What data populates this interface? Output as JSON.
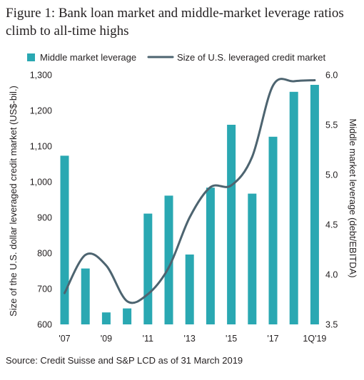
{
  "title": "Figure 1: Bank loan market and middle-market leverage ratios climb to all-time highs",
  "source": "Source: Credit Suisse and S&P LCD as of 31 March 2019",
  "colors": {
    "bar": "#2aa8b2",
    "line": "#4d6470",
    "text": "#231f20"
  },
  "chart_data": {
    "type": "bar",
    "categories": [
      "2007",
      "2008",
      "2009",
      "2010",
      "2011",
      "2012",
      "2013",
      "2014",
      "2015",
      "2016",
      "2017",
      "2018",
      "1Q19"
    ],
    "x_tick_labels": [
      "'07",
      "'09",
      "'11",
      "'13",
      "'15",
      "'17",
      "1Q'19"
    ],
    "series": [
      {
        "name": "Middle market leverage",
        "type": "bar",
        "axis": "right",
        "values": [
          5.19,
          4.06,
          3.62,
          3.66,
          4.61,
          4.79,
          4.2,
          4.87,
          5.5,
          4.81,
          5.38,
          5.83,
          5.9
        ]
      },
      {
        "name": "Size of U.S. leveraged credit market",
        "type": "line",
        "axis": "left",
        "values": [
          688,
          795,
          765,
          665,
          685,
          760,
          900,
          985,
          990,
          1070,
          1270,
          1282,
          1285
        ]
      }
    ],
    "y_left": {
      "label": "Size of the U.S. dollar leveraged credit market (US$-bil.)",
      "ylim": [
        600,
        1300
      ],
      "ticks": [
        "600",
        "700",
        "800",
        "900",
        "1,000",
        "1,100",
        "1,200",
        "1,300"
      ]
    },
    "y_right": {
      "label": "Middle market leverage (debt/EBITDA)",
      "ylim": [
        3.5,
        6.0
      ],
      "ticks": [
        "3.5",
        "4.0",
        "4.5",
        "5.0",
        "5.5",
        "6.0"
      ]
    },
    "legend_position": "top",
    "grid": false
  }
}
